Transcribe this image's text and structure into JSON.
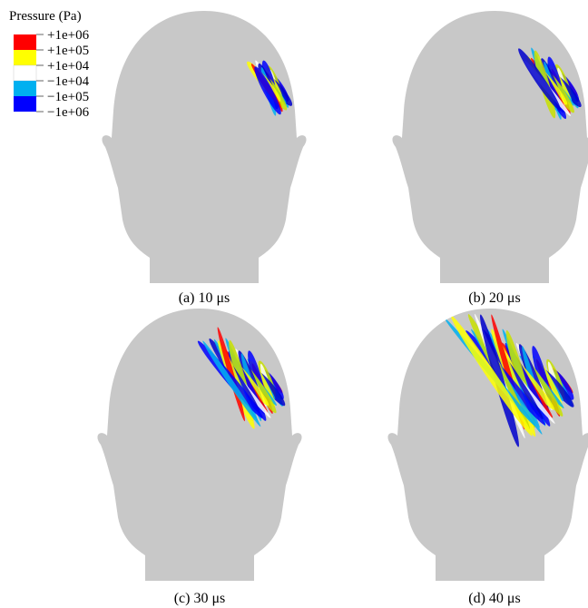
{
  "legend": {
    "title": "Pressure (Pa)",
    "labels": [
      "+1e+06",
      "+1e+05",
      "+1e+04",
      "−1e+04",
      "−1e+05",
      "−1e+06"
    ]
  },
  "panels": [
    {
      "caption": "(a) 10 μs"
    },
    {
      "caption": "(b) 20 μs"
    },
    {
      "caption": "(c) 30 μs"
    },
    {
      "caption": "(d) 40 μs"
    }
  ]
}
